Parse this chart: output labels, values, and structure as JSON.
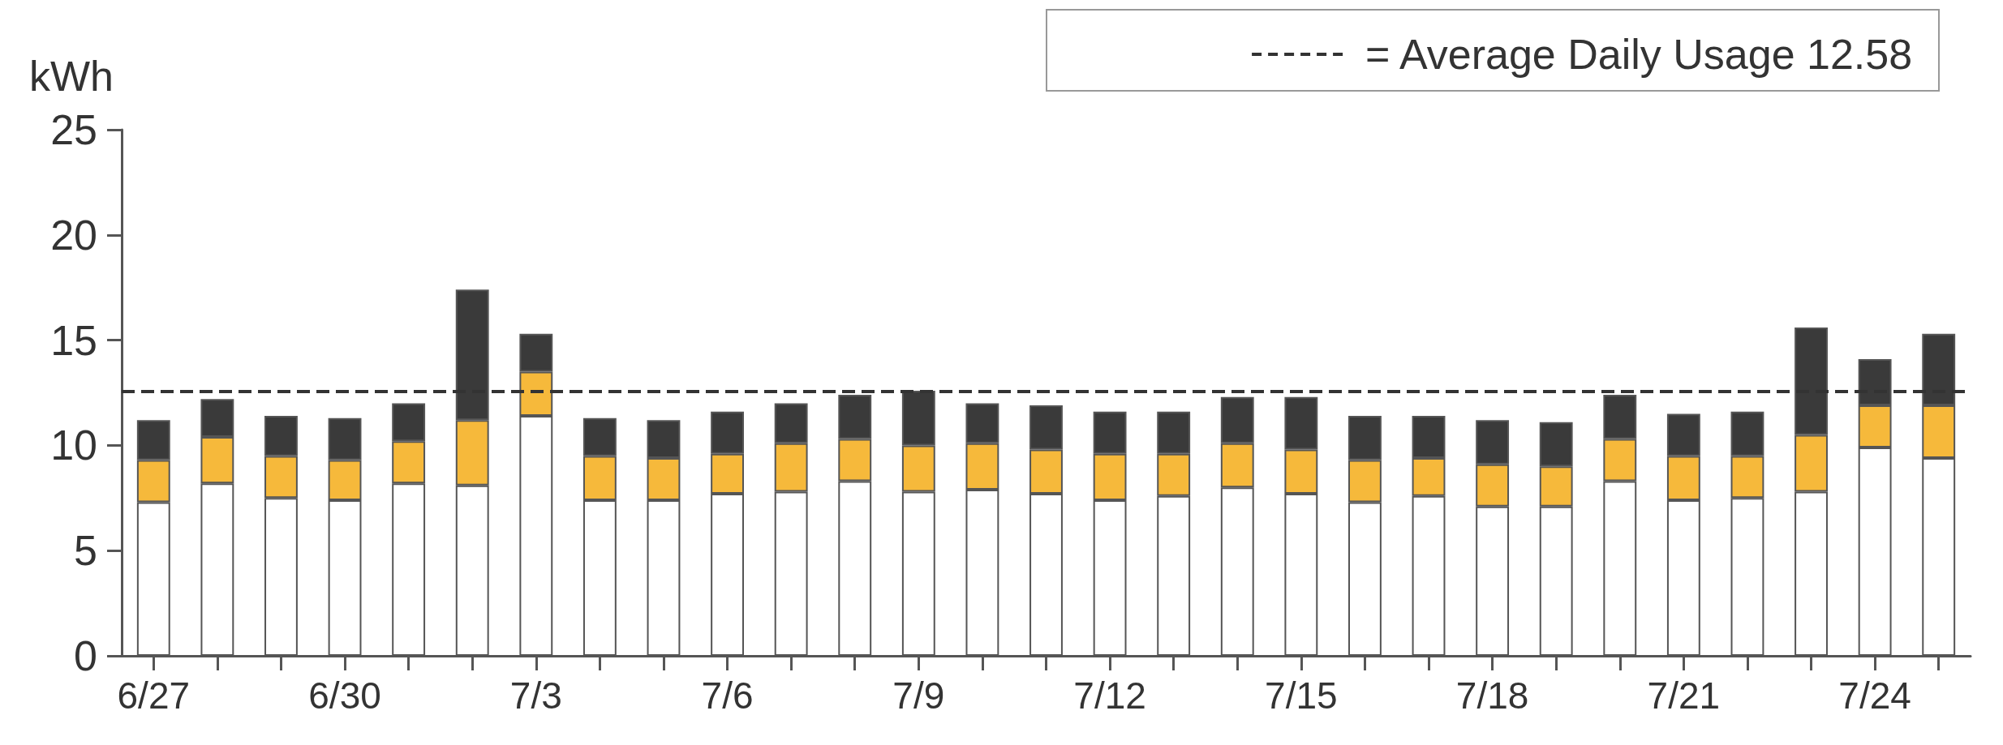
{
  "chart_data": {
    "type": "bar",
    "stacked": true,
    "ylabel": "kWh",
    "categories": [
      "6/27",
      null,
      null,
      "6/30",
      null,
      null,
      "7/3",
      null,
      null,
      "7/6",
      null,
      null,
      "7/9",
      null,
      null,
      "7/12",
      null,
      null,
      "7/15",
      null,
      null,
      "7/18",
      null,
      null,
      "7/21",
      null,
      null,
      "7/24",
      null
    ],
    "series": [
      {
        "color": "#ffffff",
        "values": [
          7.3,
          8.2,
          7.5,
          7.4,
          8.2,
          8.1,
          11.4,
          7.4,
          7.4,
          7.7,
          7.8,
          8.3,
          7.8,
          7.9,
          7.7,
          7.4,
          7.6,
          8.0,
          7.7,
          7.3,
          7.6,
          7.1,
          7.1,
          8.3,
          7.4,
          7.5,
          7.8,
          9.9,
          9.4
        ]
      },
      {
        "color": "#f6b93b",
        "values": [
          2.0,
          2.2,
          2.0,
          1.9,
          2.0,
          3.1,
          2.1,
          2.1,
          2.0,
          1.9,
          2.3,
          2.0,
          2.2,
          2.2,
          2.1,
          2.2,
          2.0,
          2.1,
          2.1,
          2.0,
          1.8,
          2.0,
          1.9,
          2.0,
          2.1,
          2.0,
          2.7,
          2.0,
          2.5
        ]
      },
      {
        "color": "#3a3a3a",
        "values": [
          1.9,
          1.8,
          1.9,
          2.0,
          1.8,
          6.2,
          1.8,
          1.8,
          1.8,
          2.0,
          1.9,
          2.1,
          2.6,
          1.9,
          2.1,
          2.0,
          2.0,
          2.2,
          2.5,
          2.1,
          2.0,
          2.1,
          2.1,
          2.1,
          2.0,
          2.1,
          5.1,
          2.2,
          3.4
        ]
      }
    ],
    "ylim": [
      0,
      25
    ],
    "yticks": [
      0,
      5,
      10,
      15,
      20,
      25
    ],
    "grid": false,
    "ref_lines": [
      {
        "axis": "y",
        "value": 12.58,
        "label": "= Average Daily Usage 12.58",
        "line_style": "dashed",
        "color": "#333333"
      }
    ]
  }
}
